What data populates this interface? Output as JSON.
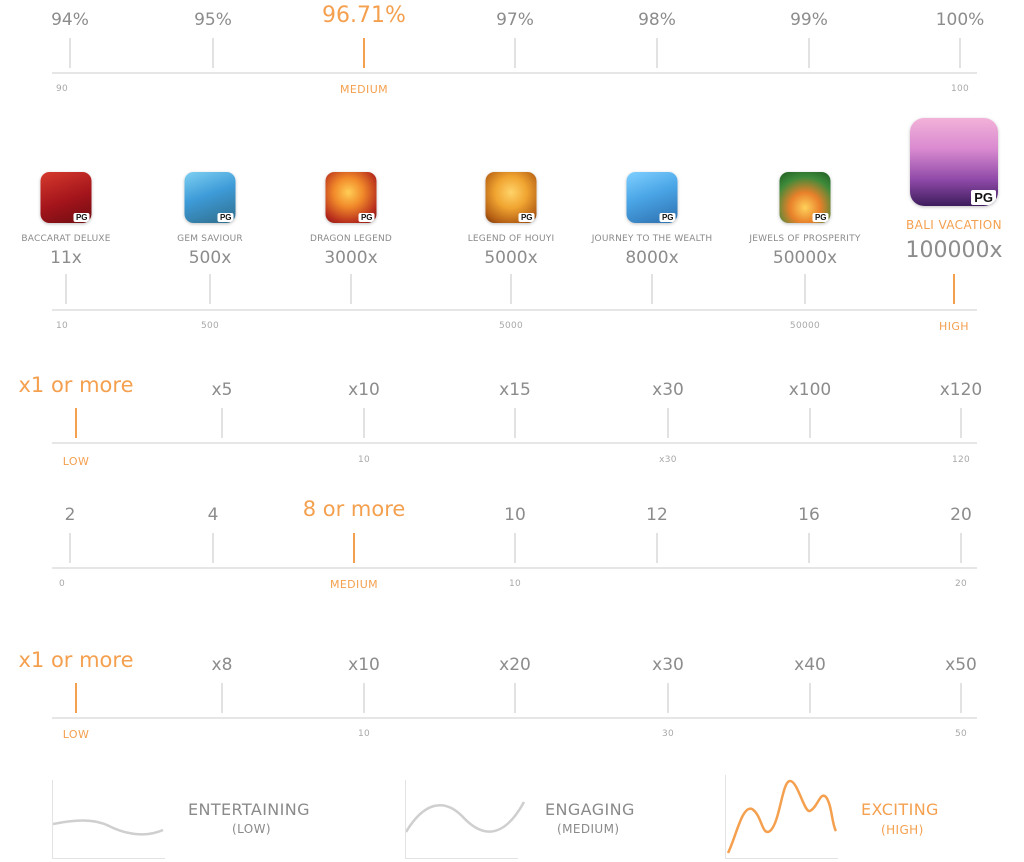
{
  "rtp": {
    "values": [
      "94%",
      "95%",
      "96.71%",
      "97%",
      "98%",
      "99%",
      "100%"
    ],
    "scale": [
      "90",
      "100"
    ],
    "marker": "MEDIUM"
  },
  "max_win": {
    "games": [
      {
        "name": "BACCARAT DELUXE",
        "mult": "11x"
      },
      {
        "name": "GEM SAVIOUR",
        "mult": "500x"
      },
      {
        "name": "DRAGON LEGEND",
        "mult": "3000x"
      },
      {
        "name": "LEGEND OF HOUYI",
        "mult": "5000x"
      },
      {
        "name": "JOURNEY TO THE WEALTH",
        "mult": "8000x"
      },
      {
        "name": "JEWELS OF PROSPERITY",
        "mult": "50000x"
      },
      {
        "name": "BALI VACATION",
        "mult": "100000x"
      }
    ],
    "icon_badge": "PG",
    "scale": [
      "10",
      "500",
      "5000",
      "50000"
    ],
    "marker": "HIGH"
  },
  "row3": {
    "values": [
      "x1 or more",
      "x5",
      "x10",
      "x15",
      "x30",
      "x100",
      "x120"
    ],
    "scale": [
      "10",
      "x30",
      "120"
    ],
    "marker": "LOW"
  },
  "row4": {
    "values": [
      "2",
      "4",
      "8 or more",
      "10",
      "12",
      "16",
      "20"
    ],
    "scale": [
      "0",
      "10",
      "20"
    ],
    "marker": "MEDIUM"
  },
  "row5": {
    "values": [
      "x1 or more",
      "x8",
      "x10",
      "x20",
      "x30",
      "x40",
      "x50"
    ],
    "scale": [
      "10",
      "30",
      "50"
    ],
    "marker": "LOW"
  },
  "volatility": [
    {
      "title": "ENTERTAINING",
      "sub": "(LOW)"
    },
    {
      "title": "ENGAGING",
      "sub": "(MEDIUM)"
    },
    {
      "title": "EXCITING",
      "sub": "(HIGH)"
    }
  ],
  "colors": {
    "accent": "#f4a04f",
    "text": "#8a8a8a",
    "rule": "#e6e6e6"
  }
}
